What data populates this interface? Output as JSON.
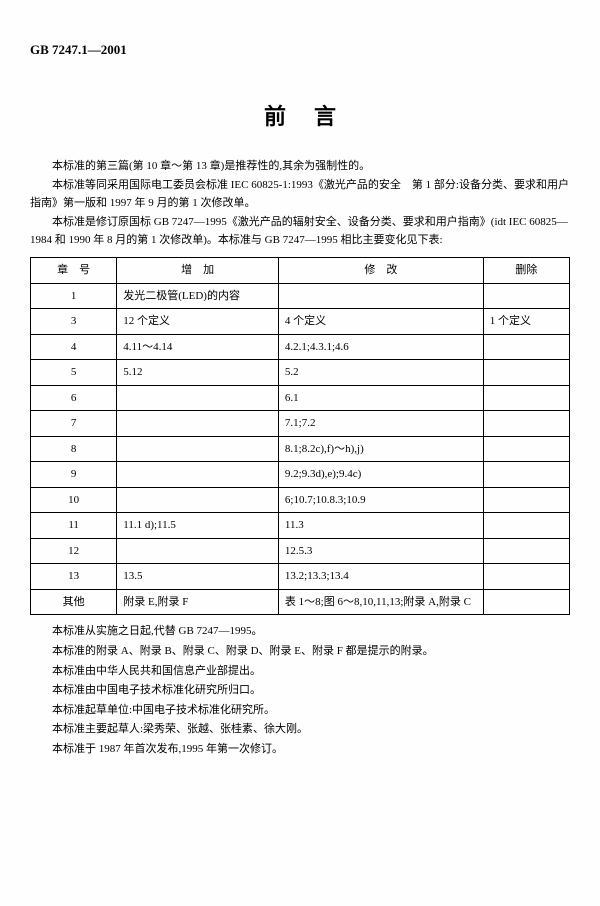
{
  "header_code": "GB 7247.1—2001",
  "title": "前言",
  "intro": {
    "p1": "本标准的第三篇(第 10 章～第 13 章)是推荐性的,其余为强制性的。",
    "p2": "本标准等同采用国际电工委员会标准 IEC 60825-1:1993《激光产品的安全　第 1 部分:设备分类、要求和用户指南》第一版和 1997 年 9 月的第 1 次修改单。",
    "p3": "本标准是修订原国标 GB 7247—1995《激光产品的辐射安全、设备分类、要求和用户指南》(idt IEC 60825—1984 和 1990 年 8 月的第 1 次修改单)。本标准与 GB 7247—1995 相比主要变化见下表:"
  },
  "table": {
    "headers": {
      "chapter": "章　号",
      "add": "增　加",
      "modify": "修　改",
      "delete": "删除"
    },
    "rows": [
      {
        "ch": "1",
        "add": "发光二极管(LED)的内容",
        "mod": "",
        "del": ""
      },
      {
        "ch": "3",
        "add": "12 个定义",
        "mod": "4 个定义",
        "del": "1 个定义"
      },
      {
        "ch": "4",
        "add": "4.11～4.14",
        "mod": "4.2.1;4.3.1;4.6",
        "del": ""
      },
      {
        "ch": "5",
        "add": "5.12",
        "mod": "5.2",
        "del": ""
      },
      {
        "ch": "6",
        "add": "",
        "mod": "6.1",
        "del": ""
      },
      {
        "ch": "7",
        "add": "",
        "mod": "7.1;7.2",
        "del": ""
      },
      {
        "ch": "8",
        "add": "",
        "mod": "8.1;8.2c),f)～h),j)",
        "del": ""
      },
      {
        "ch": "9",
        "add": "",
        "mod": "9.2;9.3d),e);9.4c)",
        "del": ""
      },
      {
        "ch": "10",
        "add": "",
        "mod": "6;10.7;10.8.3;10.9",
        "del": ""
      },
      {
        "ch": "11",
        "add": "11.1 d);11.5",
        "mod": "11.3",
        "del": ""
      },
      {
        "ch": "12",
        "add": "",
        "mod": "12.5.3",
        "del": ""
      },
      {
        "ch": "13",
        "add": "13.5",
        "mod": "13.2;13.3;13.4",
        "del": ""
      },
      {
        "ch": "其他",
        "add": "附录 E,附录 F",
        "mod": "表 1～8;图 6～8,10,11,13;附录 A,附录 C",
        "del": ""
      }
    ]
  },
  "outro": {
    "p1": "本标准从实施之日起,代替 GB 7247—1995。",
    "p2": "本标准的附录 A、附录 B、附录 C、附录 D、附录 E、附录 F 都是提示的附录。",
    "p3": "本标准由中华人民共和国信息产业部提出。",
    "p4": "本标准由中国电子技术标准化研究所归口。",
    "p5": "本标准起草单位:中国电子技术标准化研究所。",
    "p6": "本标准主要起草人:梁秀荣、张越、张桂素、徐大刚。",
    "p7": "本标准于 1987 年首次发布,1995 年第一次修订。"
  }
}
